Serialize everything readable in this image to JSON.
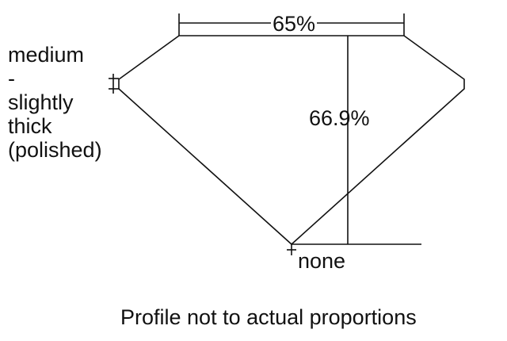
{
  "labels": {
    "girdle_lines": [
      "medium",
      "-",
      "slightly",
      "thick",
      "(polished)"
    ],
    "table": "65%",
    "depth": "66.9%",
    "culet": "none",
    "note": "Profile not to actual proportions"
  },
  "colors": {
    "line": "#111111",
    "background": "#ffffff"
  }
}
